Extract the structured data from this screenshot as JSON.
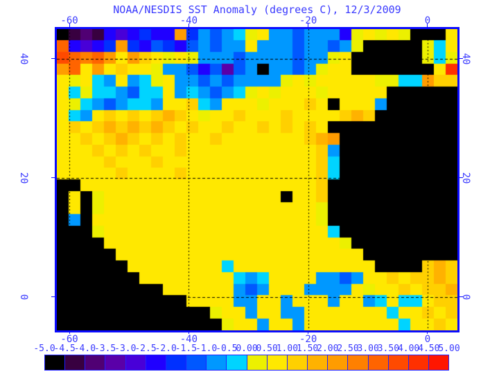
{
  "title": "NOAA/NESDIS SST Anomaly (degrees C), 12/3/2009",
  "colors": {
    "axis_text": "#3a3aff",
    "frame": "#0a0aff",
    "gridline": "#000000",
    "background": "#ffffff",
    "colorbar_border": "#2020ff",
    "land": "#000000"
  },
  "axes": {
    "lon_min": -62.1,
    "lon_max": 5.0,
    "lat_top": 45.0,
    "lat_bottom": -5.6,
    "lon_ticks": [
      {
        "label": "-60",
        "value": -60
      },
      {
        "label": "-40",
        "value": -40
      },
      {
        "label": "-20",
        "value": -20
      },
      {
        "label": "0",
        "value": 0
      }
    ],
    "lat_ticks": [
      {
        "label": "40",
        "value": 40
      },
      {
        "label": "20",
        "value": 20
      },
      {
        "label": "0",
        "value": 0
      }
    ]
  },
  "colorbar": {
    "labels": [
      "-5.0",
      "-4.5",
      "-4.0",
      "-3.5",
      "-3.0",
      "-2.5",
      "-2.0",
      "-1.5",
      "-1.0",
      "-0.5",
      "0.00",
      "0.50",
      "1.00",
      "1.50",
      "2.00",
      "2.50",
      "3.00",
      "3.50",
      "4.00",
      "4.50",
      "5.00"
    ],
    "colors": [
      "#000000",
      "#380040",
      "#500073",
      "#5a00a8",
      "#4800d8",
      "#2000ff",
      "#0030ff",
      "#0058ff",
      "#0098ff",
      "#00d4ff",
      "#ecf000",
      "#ffe800",
      "#ffd000",
      "#ffb200",
      "#ff9c00",
      "#ff8000",
      "#ff6400",
      "#ff4a00",
      "#ff3000",
      "#ff1600"
    ]
  },
  "chart_data": {
    "type": "heatmap",
    "title": "NOAA/NESDIS SST Anomaly (degrees C), 12/3/2009",
    "units": "degrees C anomaly",
    "value_range": [
      -5.0,
      5.0
    ],
    "bin_width": 0.5,
    "lon_range": [
      -63,
      5
    ],
    "lat_range": [
      -7,
      45
    ],
    "cell_size_deg": 2,
    "grid_cols": 34,
    "land_char": "A",
    "palette": {
      "A": "#000000",
      "m": "#380040",
      "p": "#500073",
      "P": "#5a00a8",
      "v": "#4800d8",
      "b": "#2000ff",
      "B": "#0030ff",
      "d": "#0058ff",
      "c": "#0098ff",
      "C": "#00d4ff",
      "y": "#ecf000",
      "Y": "#ffe800",
      "g": "#ffd000",
      "G": "#ffb200",
      "o": "#ff9c00",
      "O": "#ff8000",
      "r": "#ff6400",
      "R": "#ff4a00",
      "q": "#ff3000",
      "Q": "#ff1600"
    },
    "grid_rows": [
      "AmpmbvbBbboBcdcCyYccdcccbyYyYyAAAY",
      "rbvbBoBbdBbdcdccYcccdccdcyAAAAAyCY",
      "RrOroYogYyYycccdccccdccyYAAAAAAyCy",
      "orYoYgYYyccdbdPdcAccdcyYYAAAAAAAYq",
      "YyYCcYcCyYccdcdccccyYyYYYYYyyCCogg",
      "YCyCCcdCCYcCcdcCyYyYYYyYYYYYAAAAAA",
      "YyCcdcCCcYYgCcYYYyYYYgYAYYYcAAAAAA",
      "YCcYgYgYgGgYyYYgYYYgYYYYgGgAAAAAAA",
      "YgYgGgGgGgYgYYgYYgYgYgYAAAAAAAAAAA",
      "YYgYgGgYgYgYYgYYYYYYYgGoAAAAAAAAAA",
      "YYYgYgYgYYgYYYYYYYYYYYgcAAAAAAAAAA",
      "YYYYgYYYgYYYYYYYYYYYYYgCAAAAAAAAAA",
      "YYYYYgYYYYgYYYYYYYYYYYgCAAAAAAAAAA",
      "AAYYYYYYYYYYYYYYYYYYYYgAAAAAAAAAAA",
      "AYAyYYYYYYYYYYYYYYYAYYgAAAAAAAAAAA",
      "AYAyYYYYYYYYYYYYYYYYYYyAAAAAAAAAAA",
      "AcAYYYYYYYYYYYYYYYYYYYyAAAAAAAAAAA",
      "AAAyYYYYYYYYYYYYYYYYYYYCAAAAAAAAAA",
      "AAAAYYYYYYYYYYYYYYYYYYYYyAAAAAAAAA",
      "AAAAAYYYYYYYYYYYYYYYYYYYYYAAAAAAAA",
      "AAAAAAYYYYYYYYCYYYYYYYYYYYYAAAAgGg",
      "AAAAAAAYYYYYYYYCcCYYYYccdcYYgYggGg",
      "AAAAAAAAAYYYYYYcdcYYYccccYyYYgYggG",
      "AAAAAAAAAAAYYYYccYYcYYYcYYcCYCCYgg",
      "AAAAAAAAAAAAAyYYcYYccYYYYYYYCYYgYg",
      "AAAAAAAAAAAAAAyYYcYYcYYYYYYYYCYYgY"
    ]
  }
}
